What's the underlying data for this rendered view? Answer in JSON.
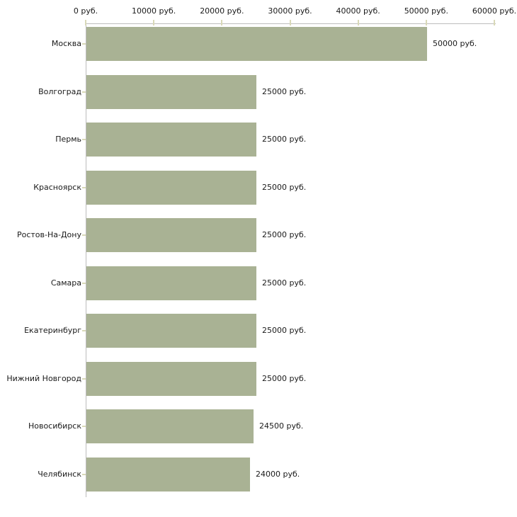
{
  "chart_data": {
    "type": "bar",
    "orientation": "horizontal",
    "title": "",
    "xlabel": "",
    "ylabel": "",
    "categories": [
      "Москва",
      "Волгоград",
      "Пермь",
      "Красноярск",
      "Ростов-На-Дону",
      "Самара",
      "Екатеринбург",
      "Нижний Новгород",
      "Новосибирск",
      "Челябинск"
    ],
    "values": [
      50000,
      25000,
      25000,
      25000,
      25000,
      25000,
      25000,
      25000,
      24500,
      24000
    ],
    "value_labels": [
      "50000 руб.",
      "25000 руб.",
      "25000 руб.",
      "25000 руб.",
      "25000 руб.",
      "25000 руб.",
      "25000 руб.",
      "25000 руб.",
      "24500 руб.",
      "24000 руб."
    ],
    "x_tick_values": [
      0,
      10000,
      20000,
      30000,
      40000,
      50000,
      60000
    ],
    "x_tick_labels": [
      "0 руб.",
      "10000 руб.",
      "20000 руб.",
      "30000 руб.",
      "40000 руб.",
      "50000 руб.",
      "60000 руб."
    ],
    "xlim": [
      0,
      60000
    ],
    "unit": "руб.",
    "grid": false,
    "legend": false,
    "colors": {
      "bar": "#a9b294",
      "axis": "#bcbcbc",
      "tick": "#d9d9b8",
      "text": "#1a1a1a"
    }
  }
}
